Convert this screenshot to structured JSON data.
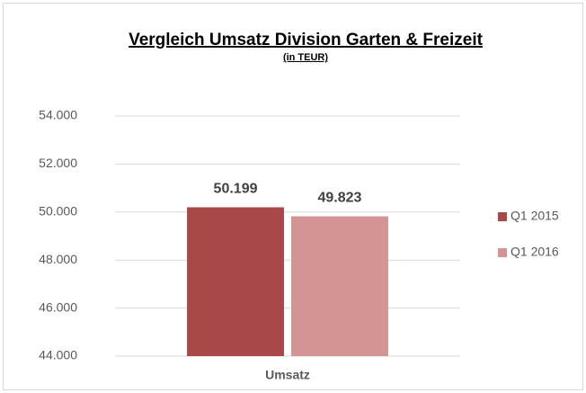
{
  "chart_data": {
    "type": "bar",
    "title": "Vergleich Umsatz Division Garten & Freizeit",
    "subtitle": "(in TEUR)",
    "categories": [
      "Umsatz"
    ],
    "series": [
      {
        "name": "Q1 2015",
        "color": "#a84848",
        "values": [
          50199
        ],
        "value_labels": [
          "50.199"
        ]
      },
      {
        "name": "Q1 2016",
        "color": "#d49494",
        "values": [
          49823
        ],
        "value_labels": [
          "49.823"
        ]
      }
    ],
    "ylim": [
      44000,
      54000
    ],
    "yticks": [
      {
        "value": 44000,
        "label": "44.000"
      },
      {
        "value": 46000,
        "label": "46.000"
      },
      {
        "value": 48000,
        "label": "48.000"
      },
      {
        "value": 50000,
        "label": "50.000"
      },
      {
        "value": 52000,
        "label": "52.000"
      },
      {
        "value": 54000,
        "label": "54.000"
      }
    ],
    "grid": true,
    "legend": "right"
  }
}
